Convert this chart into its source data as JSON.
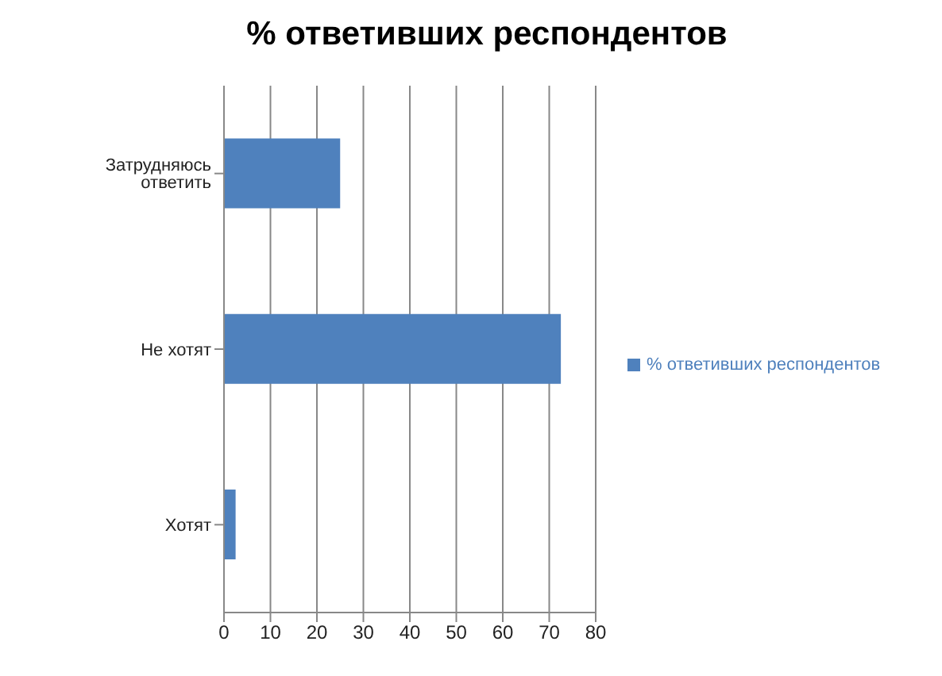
{
  "chart_data": {
    "type": "bar",
    "orientation": "horizontal",
    "title": "% ответивших респондентов",
    "categories": [
      "Затрудняюсь ответить",
      "Не хотят",
      "Хотят"
    ],
    "series": [
      {
        "name": "% ответивших респондентов",
        "color": "#4f81bd",
        "values": [
          25,
          72.5,
          2.5
        ]
      }
    ],
    "xlim": [
      0,
      80
    ],
    "xticks": [
      0,
      10,
      20,
      30,
      40,
      50,
      60,
      70,
      80
    ],
    "grid": "x",
    "legend": "right"
  }
}
